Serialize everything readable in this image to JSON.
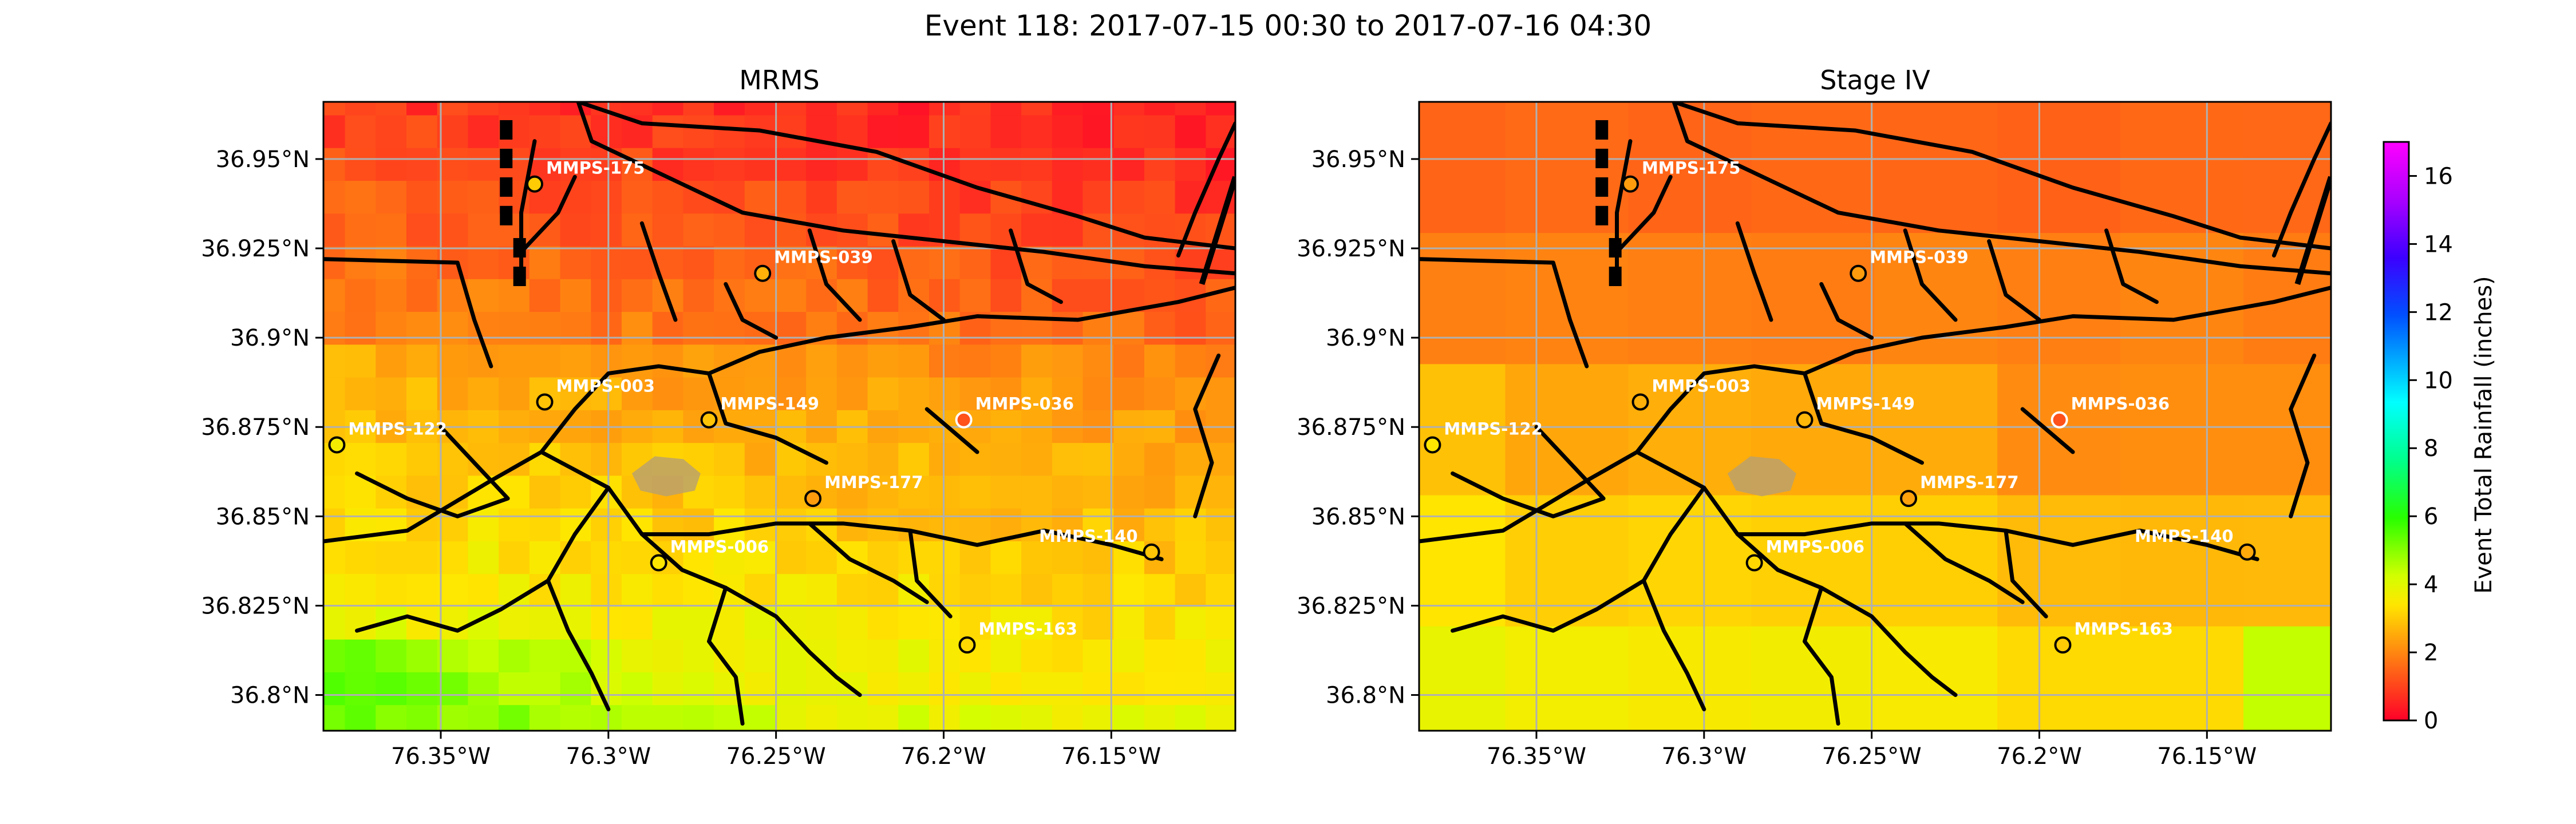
{
  "figure": {
    "suptitle": "Event 118: 2017-07-15 00:30 to 2017-07-16 04:30"
  },
  "chart_data": [
    {
      "type": "heatmap",
      "title": "MRMS",
      "xlim": [
        -76.385,
        -76.113
      ],
      "ylim": [
        36.79,
        36.966
      ],
      "x_ticks": [
        -76.35,
        -76.3,
        -76.25,
        -76.2,
        -76.15
      ],
      "x_tick_labels": [
        "76.35°W",
        "76.3°W",
        "76.25°W",
        "76.2°W",
        "76.15°W"
      ],
      "y_ticks": [
        36.8,
        36.825,
        36.85,
        36.875,
        36.9,
        36.925,
        36.95
      ],
      "y_tick_labels": [
        "36.8°N",
        "36.825°N",
        "36.85°N",
        "36.875°N",
        "36.9°N",
        "36.925°N",
        "36.95°N"
      ],
      "grid": true,
      "gauges": [
        {
          "name": "MMPS-175",
          "lon": -76.322,
          "lat": 36.943,
          "value": 3.0
        },
        {
          "name": "MMPS-039",
          "lon": -76.254,
          "lat": 36.918,
          "value": 2.6
        },
        {
          "name": "MMPS-003",
          "lon": -76.319,
          "lat": 36.882,
          "value": 2.9
        },
        {
          "name": "MMPS-149",
          "lon": -76.27,
          "lat": 36.877,
          "value": 2.9
        },
        {
          "name": "MMPS-036",
          "lon": -76.194,
          "lat": 36.877,
          "value": 1.2
        },
        {
          "name": "MMPS-122",
          "lon": -76.381,
          "lat": 36.87,
          "value": 3.6
        },
        {
          "name": "MMPS-177",
          "lon": -76.239,
          "lat": 36.855,
          "value": 2.3
        },
        {
          "name": "MMPS-006",
          "lon": -76.285,
          "lat": 36.837,
          "value": 3.4
        },
        {
          "name": "MMPS-140",
          "lon": -76.138,
          "lat": 36.84,
          "value": 2.9
        },
        {
          "name": "MMPS-163",
          "lon": -76.193,
          "lat": 36.814,
          "value": 3.2
        }
      ],
      "grid_values_description": "Event total rainfall in inches on a ~0.01° grid; mostly 1–2 in across the north, 2.5–3.5 in through the middle, 3.5–5 in toward the southwest corner."
    },
    {
      "type": "heatmap",
      "title": "Stage IV",
      "xlim": [
        -76.385,
        -76.113
      ],
      "ylim": [
        36.79,
        36.966
      ],
      "x_ticks": [
        -76.35,
        -76.3,
        -76.25,
        -76.2,
        -76.15
      ],
      "x_tick_labels": [
        "76.35°W",
        "76.3°W",
        "76.25°W",
        "76.2°W",
        "76.15°W"
      ],
      "y_ticks": [
        36.8,
        36.825,
        36.85,
        36.875,
        36.9,
        36.925,
        36.95
      ],
      "y_tick_labels": [
        "36.8°N",
        "36.825°N",
        "36.85°N",
        "36.875°N",
        "36.9°N",
        "36.925°N",
        "36.95°N"
      ],
      "grid": true,
      "gauges": [
        {
          "name": "MMPS-175",
          "lon": -76.322,
          "lat": 36.943,
          "value": 2.3
        },
        {
          "name": "MMPS-039",
          "lon": -76.254,
          "lat": 36.918,
          "value": 2.3
        },
        {
          "name": "MMPS-003",
          "lon": -76.319,
          "lat": 36.882,
          "value": 2.6
        },
        {
          "name": "MMPS-149",
          "lon": -76.27,
          "lat": 36.877,
          "value": 2.7
        },
        {
          "name": "MMPS-036",
          "lon": -76.194,
          "lat": 36.877,
          "value": 1.2
        },
        {
          "name": "MMPS-122",
          "lon": -76.381,
          "lat": 36.87,
          "value": 3.4
        },
        {
          "name": "MMPS-177",
          "lon": -76.239,
          "lat": 36.855,
          "value": 2.4
        },
        {
          "name": "MMPS-006",
          "lon": -76.285,
          "lat": 36.837,
          "value": 3.2
        },
        {
          "name": "MMPS-140",
          "lon": -76.138,
          "lat": 36.84,
          "value": 2.5
        },
        {
          "name": "MMPS-163",
          "lon": -76.193,
          "lat": 36.814,
          "value": 3.0
        }
      ],
      "grid_values_description": "Event total rainfall in inches on a coarse ~0.04° grid; about 1.5 in in the north, 2.5–3 in in the middle band, 3.5 in in the southern band, up to 4.5 in in the southeast corner."
    }
  ],
  "colorbar": {
    "label": "Event Total Rainfall (inches)",
    "range": [
      0,
      17
    ],
    "ticks": [
      0,
      2,
      4,
      6,
      8,
      10,
      12,
      14,
      16
    ],
    "tick_labels": [
      "0",
      "2",
      "4",
      "6",
      "8",
      "10",
      "12",
      "14",
      "16"
    ],
    "colormap": "gist_rainbow_r"
  }
}
